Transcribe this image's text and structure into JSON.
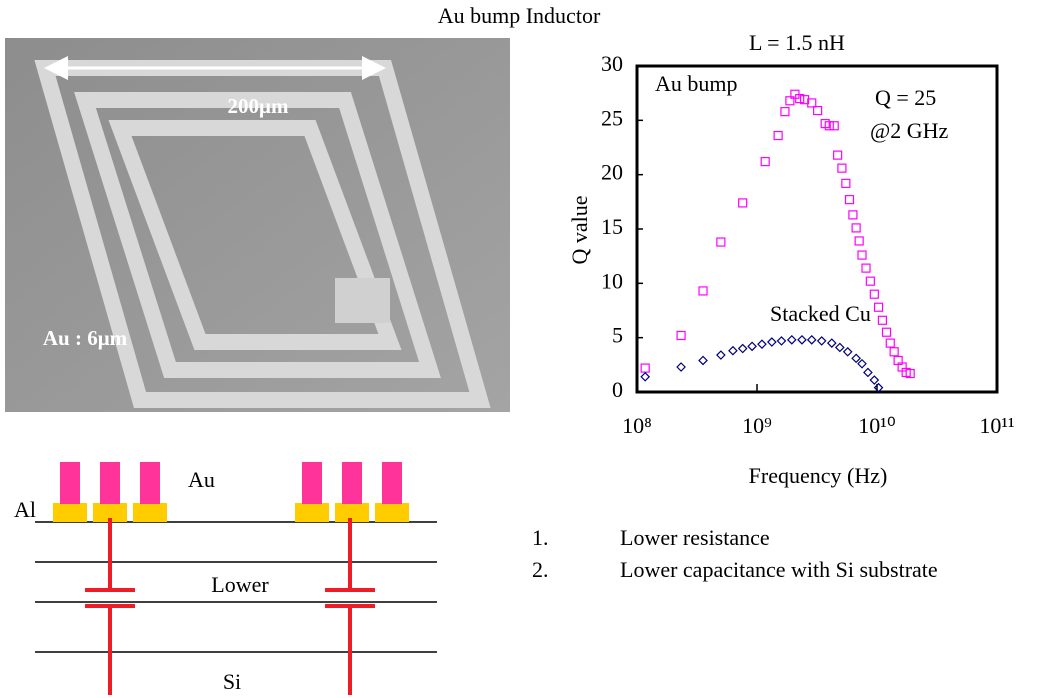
{
  "title": "Au bump Inductor",
  "image_labels": {
    "width": "200μm",
    "thickness": "Au : 6μm"
  },
  "chart_data": {
    "type": "scatter",
    "title": "L = 1.5 nH",
    "xlabel": "Frequency (Hz)",
    "ylabel": "Q value",
    "xscale": "log",
    "xlim": [
      100000000,
      100000000000
    ],
    "xticks": [
      {
        "value": 100000000,
        "label": "10⁸"
      },
      {
        "value": 1000000000,
        "label": "10⁹"
      },
      {
        "value": 10000000000,
        "label": "10¹⁰"
      },
      {
        "value": 100000000000,
        "label": "10¹¹"
      }
    ],
    "ylim": [
      0,
      30
    ],
    "yticks": [
      0,
      5,
      10,
      15,
      20,
      25,
      30
    ],
    "annotations": [
      "Q = 25",
      "@2 GHz"
    ],
    "series": [
      {
        "name": "Au bump",
        "color": "#ff00ff",
        "marker": "square",
        "x": [
          117000000,
          233000000,
          355000000,
          500000000,
          760000000,
          1170000000,
          1500000000,
          1710000000,
          1880000000,
          2070000000,
          2270000000,
          2490000000,
          2860000000,
          3200000000,
          3700000000,
          4000000000,
          4400000000,
          4700000000,
          5100000000,
          5500000000,
          5900000000,
          6300000000,
          6700000000,
          7100000000,
          7500000000,
          8100000000,
          8800000000,
          9500000000,
          10300000000,
          11100000000,
          12000000000,
          12900000000,
          13900000000,
          15000000000,
          16200000000,
          17500000000,
          18900000000
        ],
        "values": [
          2.2,
          5.2,
          9.3,
          13.8,
          17.4,
          21.2,
          23.6,
          25.8,
          26.8,
          27.4,
          27.0,
          26.9,
          26.6,
          25.9,
          24.7,
          24.5,
          24.5,
          21.8,
          20.6,
          19.2,
          17.7,
          16.3,
          15.1,
          13.9,
          12.6,
          11.4,
          10.2,
          9.0,
          7.8,
          6.6,
          5.5,
          4.5,
          3.7,
          2.9,
          2.3,
          1.8,
          1.7
        ]
      },
      {
        "name": "Stacked Cu",
        "color": "#000080",
        "marker": "diamond",
        "x": [
          117000000,
          233000000,
          355000000,
          500000000,
          630000000,
          760000000,
          910000000,
          1100000000,
          1330000000,
          1600000000,
          1950000000,
          2370000000,
          2860000000,
          3460000000,
          4200000000,
          4900000000,
          5700000000,
          6700000000,
          7500000000,
          8400000000,
          9500000000,
          10300000000
        ],
        "values": [
          1.4,
          2.3,
          2.9,
          3.4,
          3.8,
          4.0,
          4.2,
          4.4,
          4.6,
          4.7,
          4.8,
          4.8,
          4.8,
          4.7,
          4.5,
          4.1,
          3.7,
          3.1,
          2.6,
          1.8,
          1.1,
          0.4
        ]
      }
    ]
  },
  "diagram": {
    "labels": {
      "au": "Au",
      "al": "Al",
      "lower": "Lower",
      "si": "Si"
    }
  },
  "list": [
    {
      "number": "1.",
      "text": "Lower resistance"
    },
    {
      "number": "2.",
      "text": "Lower capacitance with Si substrate"
    }
  ]
}
